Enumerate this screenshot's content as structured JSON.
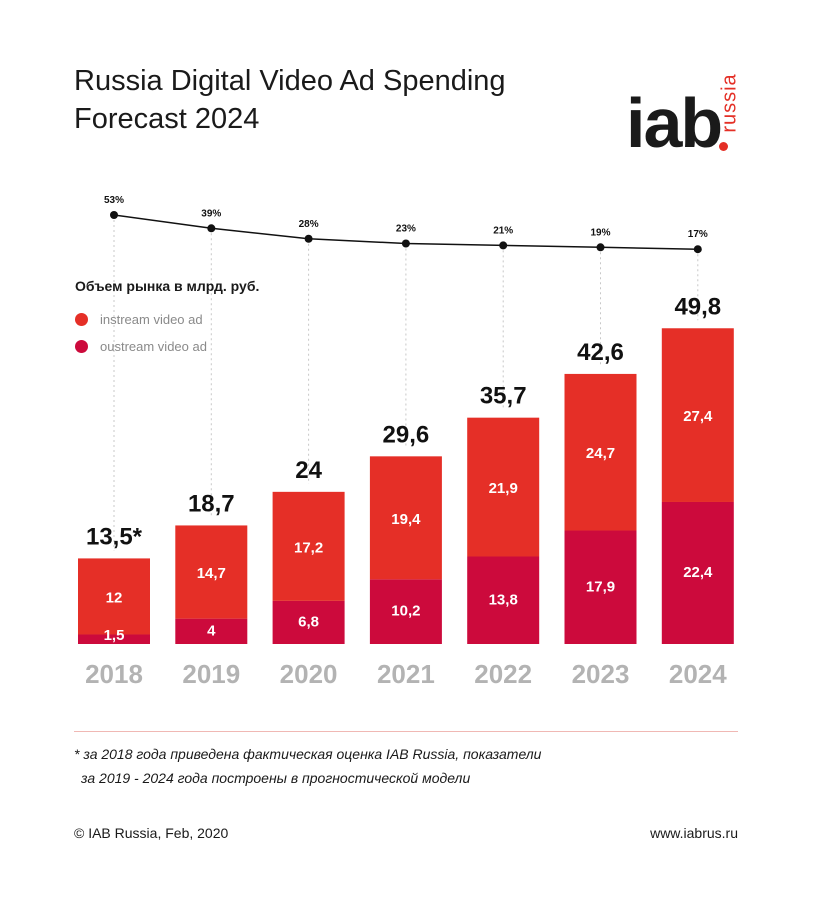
{
  "title": {
    "line1": "Russia Digital Video Ad Spending",
    "line2": "Forecast 2024"
  },
  "logo": {
    "main": "iab",
    "vertical": "russia"
  },
  "colors": {
    "instream": "#e52f27",
    "outstream": "#cc0a3c",
    "line": "#111111",
    "year_label": "#b3b3b3",
    "dashed": "#c8c8c8",
    "accent": "#e42f26"
  },
  "legend": {
    "title": "Объем рынка в млрд. руб.",
    "instream": "instream video ad",
    "outstream": "oustream video ad"
  },
  "chart_data": {
    "type": "bar",
    "stacked": true,
    "categories": [
      "2018",
      "2019",
      "2020",
      "2021",
      "2022",
      "2023",
      "2024"
    ],
    "series": [
      {
        "name": "oustream video ad",
        "values": [
          1.5,
          4,
          6.8,
          10.2,
          13.8,
          17.9,
          22.4
        ],
        "labels": [
          "1,5",
          "4",
          "6,8",
          "10,2",
          "13,8",
          "17,9",
          "22,4"
        ]
      },
      {
        "name": "instream video ad",
        "values": [
          12,
          14.7,
          17.2,
          19.4,
          21.9,
          24.7,
          27.4
        ],
        "labels": [
          "12",
          "14,7",
          "17,2",
          "19,4",
          "21,9",
          "24,7",
          "27,4"
        ]
      }
    ],
    "totals": [
      13.5,
      18.7,
      24,
      29.6,
      35.7,
      42.6,
      49.8
    ],
    "total_labels": [
      "13,5*",
      "18,7",
      "24",
      "29,6",
      "35,7",
      "42,6",
      "49,8"
    ],
    "share_line": {
      "values": [
        53,
        39,
        28,
        23,
        21,
        19,
        17
      ],
      "labels": [
        "53%",
        "39%",
        "28%",
        "23%",
        "21%",
        "19%",
        "17%"
      ]
    },
    "ylabel": "Объем рынка в млрд. руб.",
    "legend_position": "top-left"
  },
  "footnote": {
    "line1": "* за 2018 года приведена фактическая оценка IAB Russia, показатели",
    "line2": "за 2019 - 2024 года построены в прогностической модели"
  },
  "footer": {
    "copyright": "© IAB Russia, Feb, 2020",
    "website": "www.iabrus.ru"
  }
}
